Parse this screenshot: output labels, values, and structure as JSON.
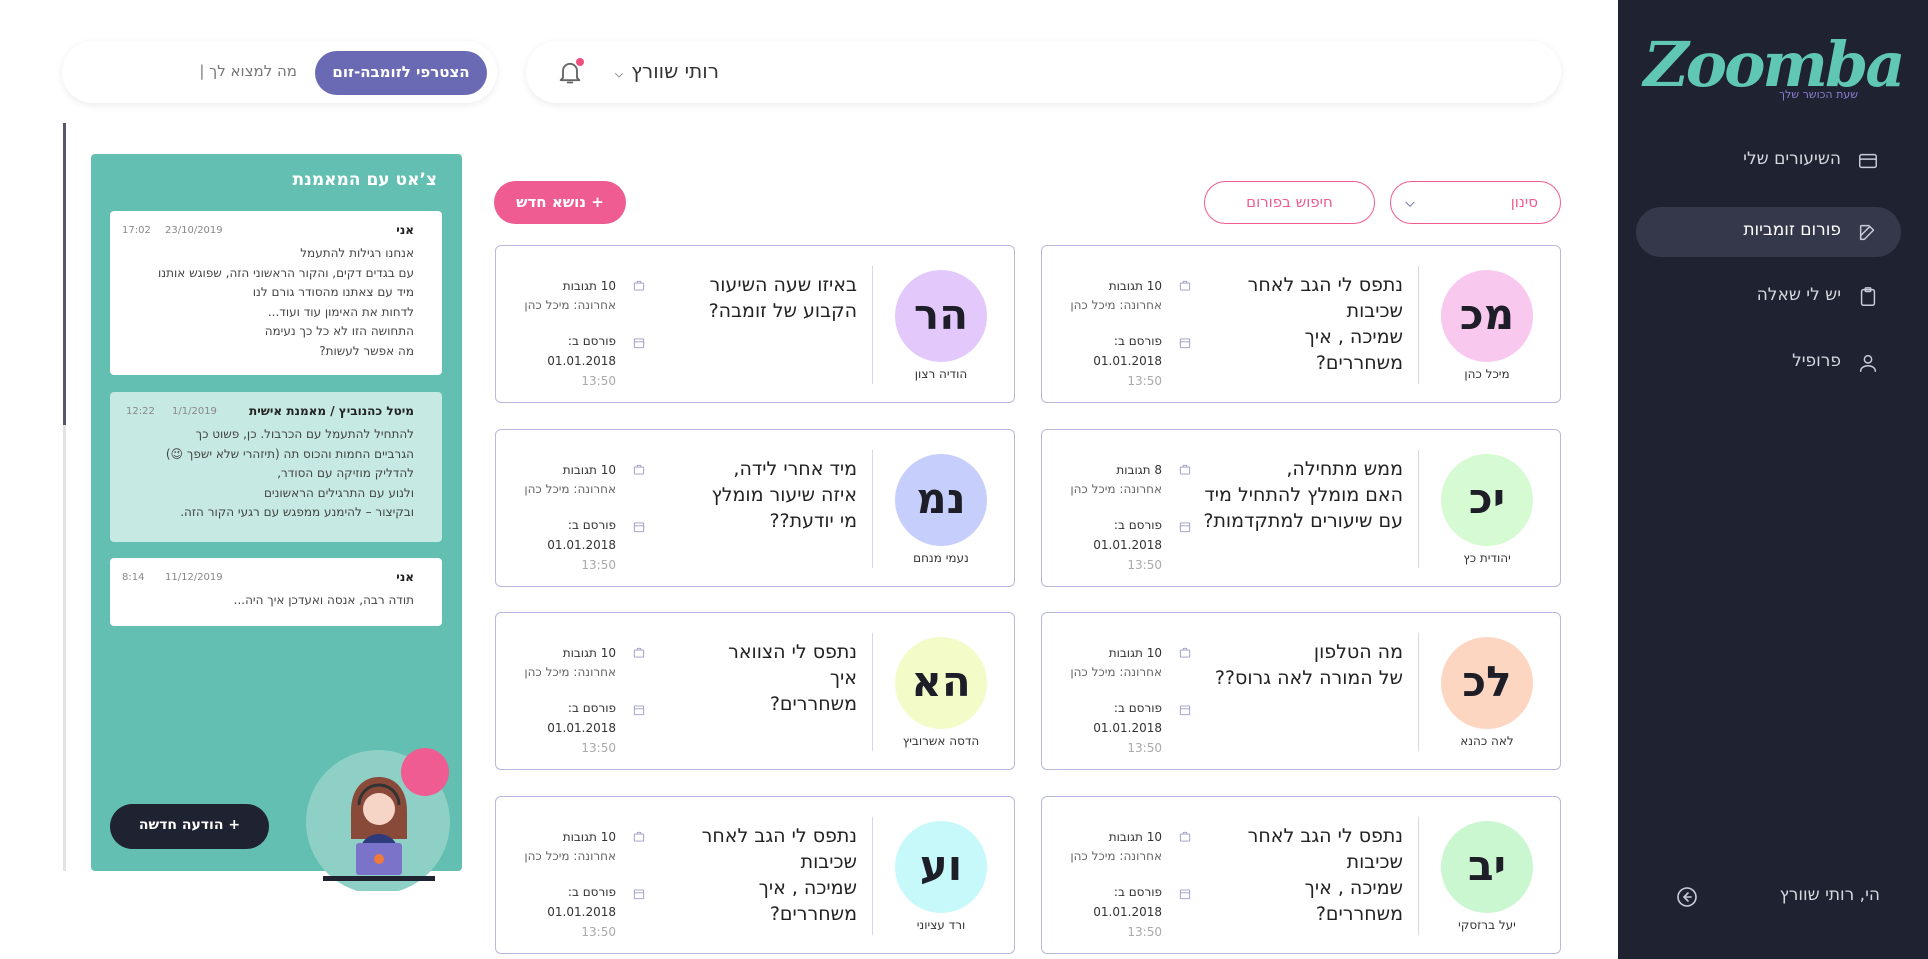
{
  "sidebar": {
    "logo": "Zoomba",
    "tagline": "שעת הכושר שלך",
    "nav": [
      {
        "label": "השיעורים שלי"
      },
      {
        "label": "פורום זומביות",
        "active": true
      },
      {
        "label": "יש לי שאלה"
      },
      {
        "label": "פרופיל"
      }
    ],
    "greeting": "הי, רותי שוורץ"
  },
  "topbar": {
    "user": "רותי שוורץ",
    "join_button": "הצטרפי לזומבה-זום",
    "search_placeholder": "מה למצוא לך |"
  },
  "toolbar": {
    "filter": "סינון",
    "search": "חיפוש בפורום",
    "new_topic": "+ נושא חדש"
  },
  "cards": [
    {
      "initials": "מכ",
      "color": "#f9c8ee",
      "name": "מיכל כהן",
      "title": [
        "נתפס לי הגב לאחר",
        "שכיבות",
        "שמיכה , איך",
        "משחררים?"
      ],
      "comments": "10 תגובות",
      "last": "אחרונה: מיכל כהן",
      "posted": "פורסם ב:",
      "date": "01.01.2018",
      "time": "13:50"
    },
    {
      "initials": "הר",
      "color": "#e3c9fb",
      "name": "הודיה רצון",
      "title": [
        "באיזו שעה השיעור",
        "הקבוע של זומבה?"
      ],
      "comments": "10 תגובות",
      "last": "אחרונה: מיכל כהן",
      "posted": "פורסם ב:",
      "date": "01.01.2018",
      "time": "13:50"
    },
    {
      "initials": "יכ",
      "color": "#d6fbd2",
      "name": "יהודית כץ",
      "title": [
        "ממש מתחילה,",
        "האם  מומלץ להתחיל מיד",
        "עם  שיעורים למתקדמות?"
      ],
      "comments": "8 תגובות",
      "last": "אחרונה: מיכל כהן",
      "posted": "פורסם ב:",
      "date": "01.01.2018",
      "time": "13:50"
    },
    {
      "initials": "נמ",
      "color": "#c6cffb",
      "name": "נעמי מנחם",
      "title": [
        "מיד אחרי לידה,",
        "איזה שיעור מומלץ",
        "מי יודעת??"
      ],
      "comments": "10 תגובות",
      "last": "אחרונה: מיכל כהן",
      "posted": "פורסם ב:",
      "date": "01.01.2018",
      "time": "13:50"
    },
    {
      "initials": "לכ",
      "color": "#fdd6c2",
      "name": "לאה כהנא",
      "title": [
        "מה הטלפון",
        "של המורה לאה גרוס??"
      ],
      "comments": "10 תגובות",
      "last": "אחרונה: מיכל כהן",
      "posted": "פורסם ב:",
      "date": "01.01.2018",
      "time": "13:50"
    },
    {
      "initials": "הא",
      "color": "#f3fbc9",
      "name": "הדסה אשרוביץ",
      "title": [
        "נתפס לי הצוואר",
        "איך",
        "משחררים?"
      ],
      "comments": "10 תגובות",
      "last": "אחרונה: מיכל כהן",
      "posted": "פורסם ב:",
      "date": "01.01.2018",
      "time": "13:50"
    },
    {
      "initials": "יב",
      "color": "#caf7d0",
      "name": "יעל ברזסקי",
      "title": [
        "נתפס לי הגב לאחר",
        "שכיבות",
        "שמיכה , איך",
        "משחררים?"
      ],
      "comments": "10 תגובות",
      "last": "אחרונה: מיכל כהן",
      "posted": "פורסם ב:",
      "date": "01.01.2018",
      "time": "13:50"
    },
    {
      "initials": "וע",
      "color": "#c7f9fb",
      "name": "ורד עציוני",
      "title": [
        "נתפס לי הגב לאחר",
        "שכיבות",
        "שמיכה , איך",
        "משחררים?"
      ],
      "comments": "10 תגובות",
      "last": "אחרונה: מיכל כהן",
      "posted": "פורסם ב:",
      "date": "01.01.2018",
      "time": "13:50"
    }
  ],
  "chat": {
    "title": "צ’אט עם המאמנת",
    "new_message": "+ הודעה חדשה",
    "messages": [
      {
        "sender": "אני",
        "date": "23/10/2019",
        "time": "17:02",
        "lines": [
          "אנחנו רגילות להתעמל",
          "עם בגדים דקים, והקור הראשוני הזה, שפוגש אותנו",
          "מיד עם צאתנו מהסודר גורם לנו",
          "לדחות את האימון עוד ועוד...",
          "התחושה הזו לא כל כך נעימה",
          "מה אפשר לעשות?"
        ]
      },
      {
        "sender": "מיטל כהנוביץ / מאמנת אישית",
        "date": "1/1/2019",
        "time": "12:22",
        "trainer": true,
        "lines": [
          "להתחיל להתעמל עם הכרבול. כן, פשוט כך",
          "הגרביים החמות והכוס תה (תיזהרי שלא ישפך 😉)",
          "להדליק מוזיקה עם הסודר,",
          "ולנוע עם התרגילים הראשונים",
          "ובקיצור – להימנע ממפגש עם רגעי הקור הזה."
        ]
      },
      {
        "sender": "אני",
        "date": "11/12/2019",
        "time": "8:14",
        "lines": [
          "תודה רבה, אנסה ואעדכן איך היה..."
        ]
      }
    ]
  }
}
